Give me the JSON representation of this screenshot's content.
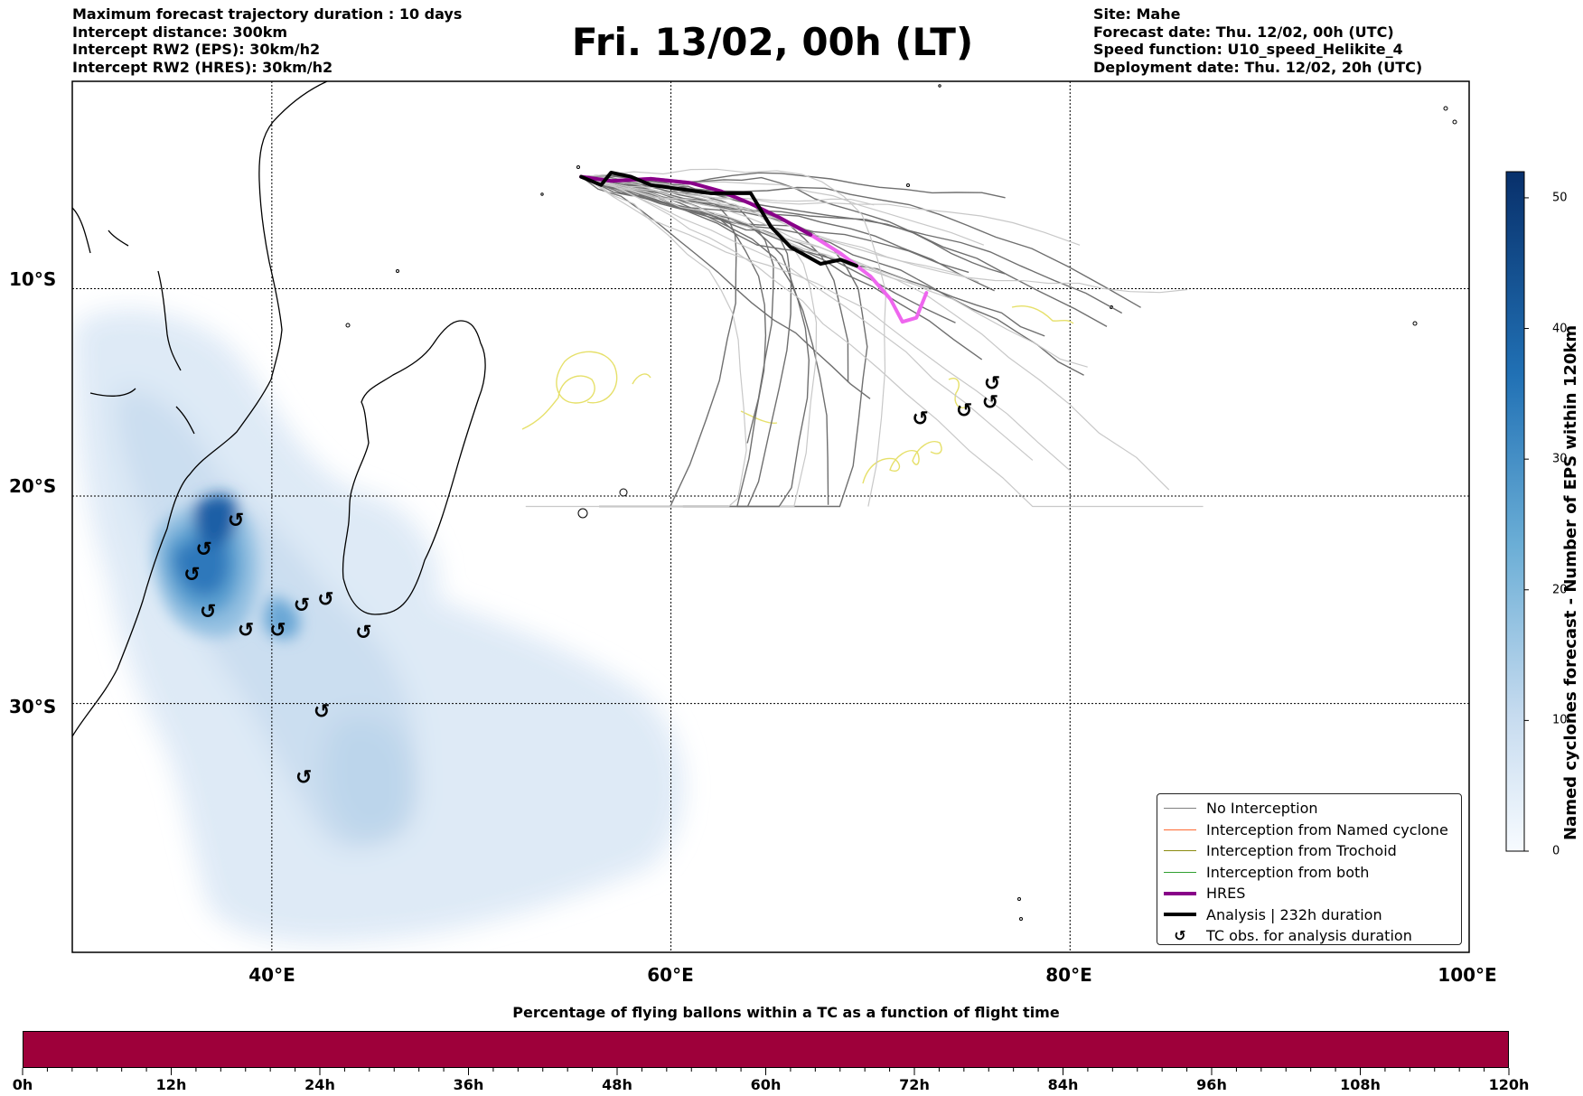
{
  "header": {
    "title": "Fri. 13/02, 00h (LT)",
    "left_info": [
      "Maximum forecast trajectory duration : 10 days",
      "Intercept distance: 300km",
      "Intercept RW2 (EPS):  30km/h2",
      "Intercept RW2 (HRES): 30km/h2"
    ],
    "right_info": [
      "Site: Mahe",
      "Forecast date: Thu. 12/02, 00h (UTC)",
      "Speed function: U10_speed_Helikite_4",
      "Deployment date: Thu. 12/02, 20h (UTC)"
    ]
  },
  "map": {
    "lon_range": [
      30,
      100
    ],
    "lat_range": [
      0,
      -42
    ],
    "lat_labels": [
      {
        "lat": -10,
        "text": "10°S"
      },
      {
        "lat": -20,
        "text": "20°S"
      },
      {
        "lat": -30,
        "text": "30°S"
      }
    ],
    "lon_labels": [
      {
        "lon": 40,
        "text": "40°E"
      },
      {
        "lon": 60,
        "text": "60°E"
      },
      {
        "lon": 80,
        "text": "80°E"
      },
      {
        "lon": 100,
        "text": "100°E"
      }
    ],
    "hres_track": [
      [
        55.5,
        -4.6
      ],
      [
        57,
        -4.8
      ],
      [
        59,
        -4.7
      ],
      [
        61,
        -4.9
      ],
      [
        62.5,
        -5.3
      ],
      [
        64,
        -5.9
      ],
      [
        65.5,
        -6.6
      ],
      [
        67,
        -7.4
      ],
      [
        68.5,
        -8.3
      ],
      [
        70,
        -9.4
      ],
      [
        71,
        -10.5
      ],
      [
        71.6,
        -11.6
      ],
      [
        72.3,
        -11.4
      ],
      [
        72.8,
        -10.2
      ]
    ],
    "analysis_track": [
      [
        55.5,
        -4.6
      ],
      [
        56.5,
        -5
      ],
      [
        57,
        -4.4
      ],
      [
        58,
        -4.6
      ],
      [
        59,
        -5
      ],
      [
        60.5,
        -5.2
      ],
      [
        62,
        -5.4
      ],
      [
        64,
        -5.4
      ],
      [
        65,
        -7
      ],
      [
        66,
        -8
      ],
      [
        67.5,
        -8.8
      ],
      [
        68.5,
        -8.6
      ],
      [
        69.3,
        -8.9
      ]
    ],
    "tc_obs": [
      [
        38.2,
        -21.2
      ],
      [
        36.6,
        -22.6
      ],
      [
        36,
        -23.8
      ],
      [
        36.8,
        -25.6
      ],
      [
        38.7,
        -26.5
      ],
      [
        40.3,
        -26.5
      ],
      [
        41.5,
        -25.3
      ],
      [
        42.7,
        -25
      ],
      [
        44.6,
        -26.6
      ],
      [
        42.5,
        -30.4
      ],
      [
        41.6,
        -33.6
      ],
      [
        72.5,
        -16.3
      ],
      [
        74.7,
        -15.9
      ],
      [
        76,
        -15.5
      ],
      [
        76.1,
        -14.6
      ]
    ]
  },
  "legend": {
    "items": [
      {
        "label": "No Interception",
        "color": "#808080",
        "kind": "line",
        "width": 1.5
      },
      {
        "label": "Interception from Named cyclone",
        "color": "#ff6a33",
        "kind": "line",
        "width": 1.5
      },
      {
        "label": "Interception from Trochoid",
        "color": "#8a8a10",
        "kind": "line",
        "width": 1.5
      },
      {
        "label": "Interception from both",
        "color": "#30a030",
        "kind": "line",
        "width": 1.5
      },
      {
        "label": "HRES",
        "color": "#880088",
        "kind": "line",
        "width": 4
      },
      {
        "label": "Analysis | 232h duration",
        "color": "#000000",
        "kind": "line",
        "width": 4
      },
      {
        "label": "TC obs. for analysis duration",
        "color": "#000000",
        "kind": "symbol",
        "width": 1
      }
    ],
    "tc_symbol": "↺"
  },
  "colorbar": {
    "title": "Named cyclones forecast - Number of EPS within 120km",
    "min": 0,
    "max": 52,
    "ticks": [
      "0",
      "10",
      "20",
      "30",
      "40",
      "50"
    ],
    "color_low": "#eef4fb",
    "color_high": "#08306b"
  },
  "timebar": {
    "title": "Percentage of flying ballons within a TC as a function of flight time",
    "ticks": [
      "0h",
      "12h",
      "24h",
      "36h",
      "48h",
      "60h",
      "72h",
      "84h",
      "96h",
      "108h",
      "120h"
    ],
    "fill_color": "#9e003a"
  }
}
